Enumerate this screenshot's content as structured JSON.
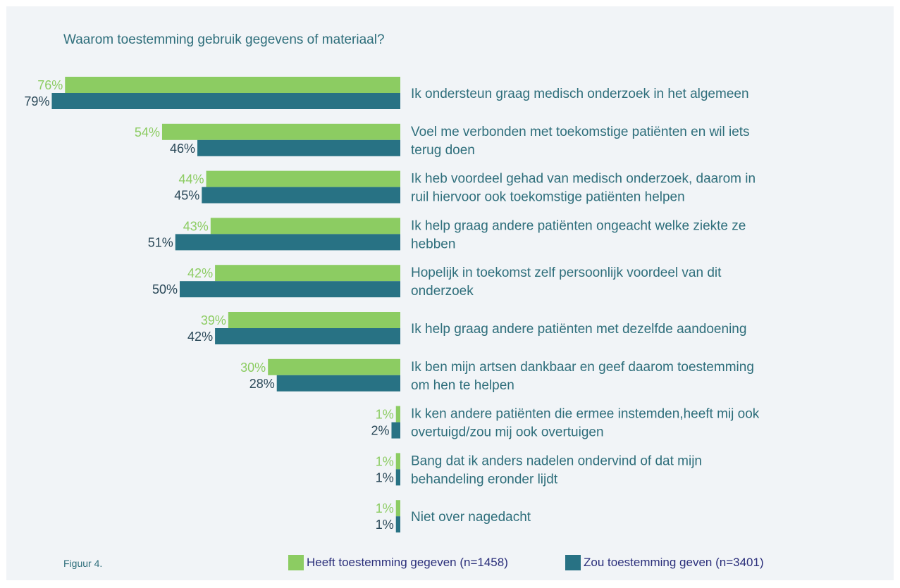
{
  "title": "Waarom toestemming gebruik gegevens of materiaal?",
  "figure_label": "Figuur 4.",
  "colors": {
    "green": "#8ccc62",
    "blue": "#287284"
  },
  "chart_data": {
    "type": "bar",
    "orientation": "horizontal",
    "unit": "%",
    "categories": [
      [
        "Ik ondersteun graag medisch onderzoek in het algemeen"
      ],
      [
        "Voel me verbonden met toekomstige patiënten en wil iets",
        "terug doen"
      ],
      [
        "Ik heb voordeel gehad van medisch onderzoek, daarom in",
        "ruil hiervoor ook toekomstige patiënten helpen"
      ],
      [
        "Ik help graag andere patiënten ongeacht welke ziekte ze",
        "hebben"
      ],
      [
        "Hopelijk in toekomst zelf persoonlijk voordeel van dit",
        "onderzoek"
      ],
      [
        "Ik help graag andere patiënten met dezelfde aandoening"
      ],
      [
        "Ik ben mijn artsen dankbaar en geef daarom toestemming",
        "om hen te helpen"
      ],
      [
        "Ik ken andere patiënten die ermee instemden,heeft mij ook",
        "overtuigd/zou mij ook overtuigen"
      ],
      [
        "Bang dat ik anders nadelen ondervind of dat mijn",
        "behandeling eronder lijdt"
      ],
      [
        "Niet over nagedacht"
      ]
    ],
    "series": [
      {
        "name": "Heeft toestemming gegeven (n=1458)",
        "color": "#8ccc62",
        "values": [
          76,
          54,
          44,
          43,
          42,
          39,
          30,
          1,
          1,
          1
        ]
      },
      {
        "name": "Zou toestemming geven (n=3401)",
        "color": "#287284",
        "values": [
          79,
          46,
          45,
          51,
          50,
          42,
          28,
          2,
          1,
          1
        ]
      }
    ],
    "legend_position": "bottom"
  }
}
